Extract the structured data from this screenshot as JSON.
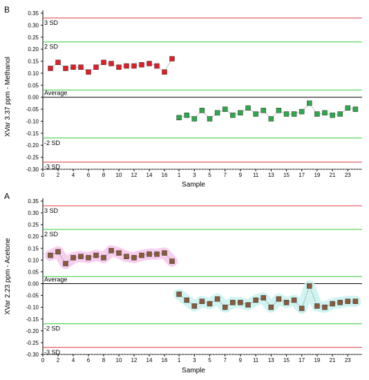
{
  "colors": {
    "sd3": "#e0363c",
    "sd2": "#33cc33",
    "avg_band": "#33cc33",
    "series_b1": "#e01e26",
    "series_b2": "#2ea84a",
    "series_a": "#8a5a3a",
    "band_a1": "#f7c6ec",
    "band_a2": "#c8f2ee"
  },
  "chart_data": [
    {
      "type": "scatter",
      "panel_label": "B",
      "title": "",
      "xlabel": "Sample",
      "ylabel": "XVar 3.37 ppm - Methanol",
      "ylim": [
        -0.3,
        0.35
      ],
      "y_ticks": [
        "0.35",
        "0.30",
        "0.25",
        "0.20",
        "0.15",
        "0.10",
        "0.05",
        "0.00",
        "-0.05",
        "-0.10",
        "-0.15",
        "-0.20",
        "-0.25",
        "-0.30"
      ],
      "x_ticks_group1": [
        "0",
        "2",
        "4",
        "6",
        "8",
        "10",
        "12",
        "14",
        "16"
      ],
      "x_ticks_group2": [
        "1",
        "3",
        "5",
        "7",
        "9",
        "11",
        "13",
        "15",
        "17",
        "19",
        "21",
        "23"
      ],
      "reference_lines": {
        "sd3_plus": 0.33,
        "sd2_plus": 0.23,
        "avg_plus": 0.03,
        "average": 0.0,
        "sd2_minus": -0.17,
        "sd3_minus": -0.27,
        "sd3_dashed": -0.3
      },
      "reference_labels": {
        "sd3_plus": "3 SD",
        "sd2_plus": "2 SD",
        "average": "Average",
        "sd2_minus": "-2 SD",
        "sd3_minus": "-3 SD"
      },
      "series": [
        {
          "x": [
            1,
            2,
            3,
            4,
            5,
            6,
            7,
            8,
            9,
            10,
            11,
            12,
            13,
            14,
            15,
            16,
            17
          ],
          "values": [
            0.12,
            0.145,
            0.12,
            0.125,
            0.125,
            0.105,
            0.125,
            0.145,
            0.14,
            0.125,
            0.13,
            0.13,
            0.135,
            0.14,
            0.13,
            0.105,
            0.16
          ]
        },
        {
          "x": [
            1,
            2,
            3,
            4,
            5,
            6,
            7,
            8,
            9,
            10,
            11,
            12,
            13,
            14,
            15,
            16,
            17,
            18,
            19,
            20,
            21,
            22,
            23,
            24
          ],
          "values": [
            -0.085,
            -0.075,
            -0.09,
            -0.055,
            -0.09,
            -0.065,
            -0.05,
            -0.075,
            -0.065,
            -0.045,
            -0.07,
            -0.055,
            -0.09,
            -0.055,
            -0.07,
            -0.07,
            -0.06,
            -0.025,
            -0.07,
            -0.065,
            -0.075,
            -0.07,
            -0.045,
            -0.05
          ]
        }
      ]
    },
    {
      "type": "scatter",
      "panel_label": "A",
      "title": "",
      "xlabel": "Sample",
      "ylabel": "XVar 2.23 ppm - Acetone",
      "ylim": [
        -0.3,
        0.35
      ],
      "y_ticks": [
        "0.35",
        "0.30",
        "0.25",
        "0.20",
        "0.15",
        "0.10",
        "0.05",
        "0.00",
        "-0.05",
        "-0.10",
        "-0.15",
        "-0.20",
        "-0.25",
        "-0.30"
      ],
      "x_ticks_group1": [
        "0",
        "2",
        "4",
        "6",
        "8",
        "10",
        "12",
        "14",
        "16"
      ],
      "x_ticks_group2": [
        "1",
        "3",
        "5",
        "7",
        "9",
        "11",
        "13",
        "15",
        "17",
        "19",
        "21",
        "23"
      ],
      "reference_lines": {
        "sd3_plus": 0.33,
        "sd2_plus": 0.23,
        "avg_plus": 0.03,
        "average": 0.0,
        "sd2_minus": -0.17,
        "sd3_minus": -0.27,
        "sd3_dashed": -0.3
      },
      "reference_labels": {
        "sd3_plus": "3 SD",
        "sd2_plus": "2 SD",
        "average": "Average",
        "sd2_minus": "-2 SD",
        "sd3_minus": "-3 SD"
      },
      "series": [
        {
          "x": [
            1,
            2,
            3,
            4,
            5,
            6,
            7,
            8,
            9,
            10,
            11,
            12,
            13,
            14,
            15,
            16,
            17
          ],
          "values": [
            0.12,
            0.135,
            0.085,
            0.11,
            0.115,
            0.11,
            0.12,
            0.11,
            0.14,
            0.13,
            0.115,
            0.11,
            0.12,
            0.125,
            0.125,
            0.13,
            0.095
          ]
        },
        {
          "x": [
            1,
            2,
            3,
            4,
            5,
            6,
            7,
            8,
            9,
            10,
            11,
            12,
            13,
            14,
            15,
            16,
            17,
            18,
            19,
            20,
            21,
            22,
            23,
            24
          ],
          "values": [
            -0.045,
            -0.07,
            -0.095,
            -0.075,
            -0.085,
            -0.065,
            -0.1,
            -0.08,
            -0.08,
            -0.09,
            -0.07,
            -0.06,
            -0.1,
            -0.065,
            -0.08,
            -0.07,
            -0.105,
            -0.01,
            -0.095,
            -0.1,
            -0.085,
            -0.08,
            -0.075,
            -0.075
          ]
        }
      ]
    }
  ]
}
